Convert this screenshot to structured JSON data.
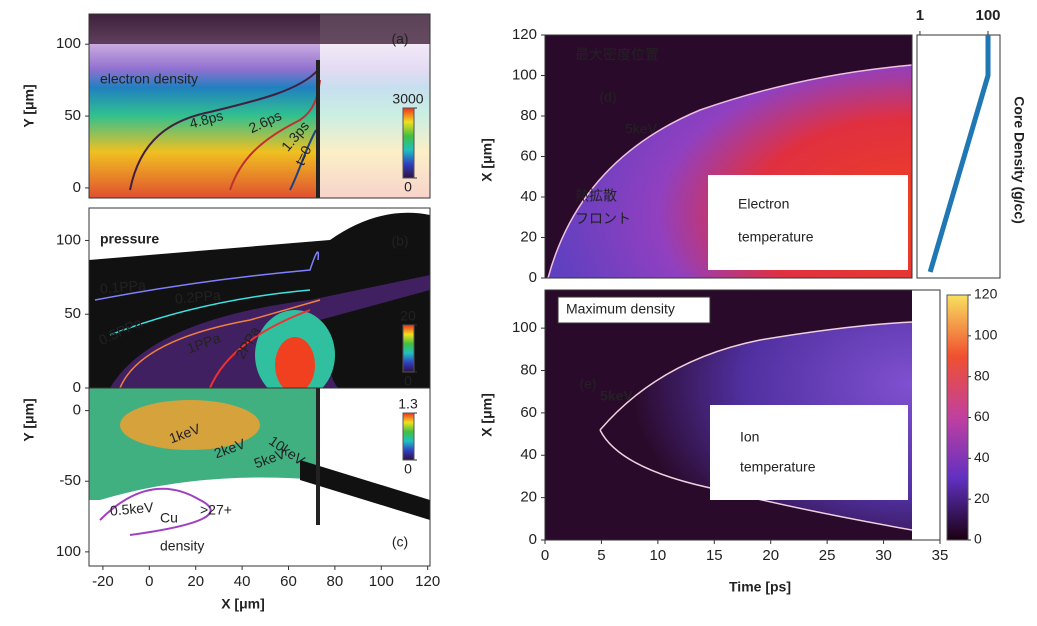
{
  "chart_data": [
    {
      "type": "heatmap",
      "label": "(a)",
      "title": "electron density",
      "ylabel": "Y [μm]",
      "xlim": [
        -26,
        121
      ],
      "ylim": [
        -7,
        121
      ],
      "yticks": [
        0,
        50,
        100
      ],
      "annotations": [
        "4.8ps",
        "2.6ps",
        "1.3ps",
        "t=0"
      ],
      "colorbar_lim": [
        0,
        3000
      ],
      "colorbar_ticks": [
        3000,
        0
      ]
    },
    {
      "type": "heatmap",
      "label": "(b)",
      "title": "pressure",
      "xlim": [
        -26,
        121
      ],
      "ylim": [
        0,
        122
      ],
      "yticks": [
        0,
        50,
        100
      ],
      "annotations": [
        "0.1PPa",
        "0.2PPa",
        "0.5PPa",
        "1PPa",
        "2PPa"
      ],
      "colorbar_lim": [
        0,
        20
      ],
      "colorbar_ticks": [
        20,
        0
      ]
    },
    {
      "type": "heatmap",
      "label": "(c)",
      "title": "density",
      "title_prefix": "Cu",
      "title_superscript": ">27+",
      "ylabel": "Y [μm]",
      "xlabel": "X [μm]",
      "xlim": [
        -26,
        121
      ],
      "xticks": [
        -20,
        0,
        20,
        40,
        60,
        80,
        100,
        120
      ],
      "ylim": [
        -110,
        16
      ],
      "yticks": [
        0,
        -50,
        {
          "value": -100,
          "label": "100"
        }
      ],
      "annotations": [
        "0.5keV",
        "1keV",
        "2keV",
        "5keV",
        "10keV"
      ],
      "colorbar_lim": [
        0,
        1.3
      ],
      "colorbar_ticks": [
        1.3,
        0
      ]
    },
    {
      "type": "heatmap",
      "label": "(d)",
      "title": "最大密度位置",
      "ylabel": "X [μm]",
      "xlim": [
        0,
        35
      ],
      "ylim": [
        0,
        120
      ],
      "yticks": [
        0,
        20,
        40,
        60,
        80,
        100,
        120
      ],
      "annotations": [
        "5keV",
        "熱拡散",
        "フロント",
        "Electron",
        "temperature"
      ]
    },
    {
      "type": "line",
      "ylabel": "Core Density (g/cc)",
      "log_x": true,
      "xlim": [
        0.82,
        225
      ],
      "xticks": [
        1,
        100
      ],
      "ylim": [
        0,
        120
      ],
      "color": "#1f77b4",
      "x": [
        2,
        100,
        100
      ],
      "values": [
        3,
        100,
        120
      ]
    },
    {
      "type": "heatmap",
      "label": "(e)",
      "title": "Maximum density",
      "ylabel": "X [μm]",
      "xlabel": "Time [ps]",
      "xlim": [
        0,
        35
      ],
      "xticks": [
        0,
        5,
        10,
        15,
        20,
        25,
        30,
        35
      ],
      "ylim": [
        0,
        118
      ],
      "yticks": [
        0,
        20,
        40,
        60,
        80,
        100
      ],
      "annotations": [
        "5keV",
        "Ion",
        "temperature"
      ],
      "colorbar_lim": [
        0,
        120
      ],
      "colorbar_ticks": [
        0,
        20,
        40,
        60,
        80,
        100,
        120
      ]
    }
  ]
}
